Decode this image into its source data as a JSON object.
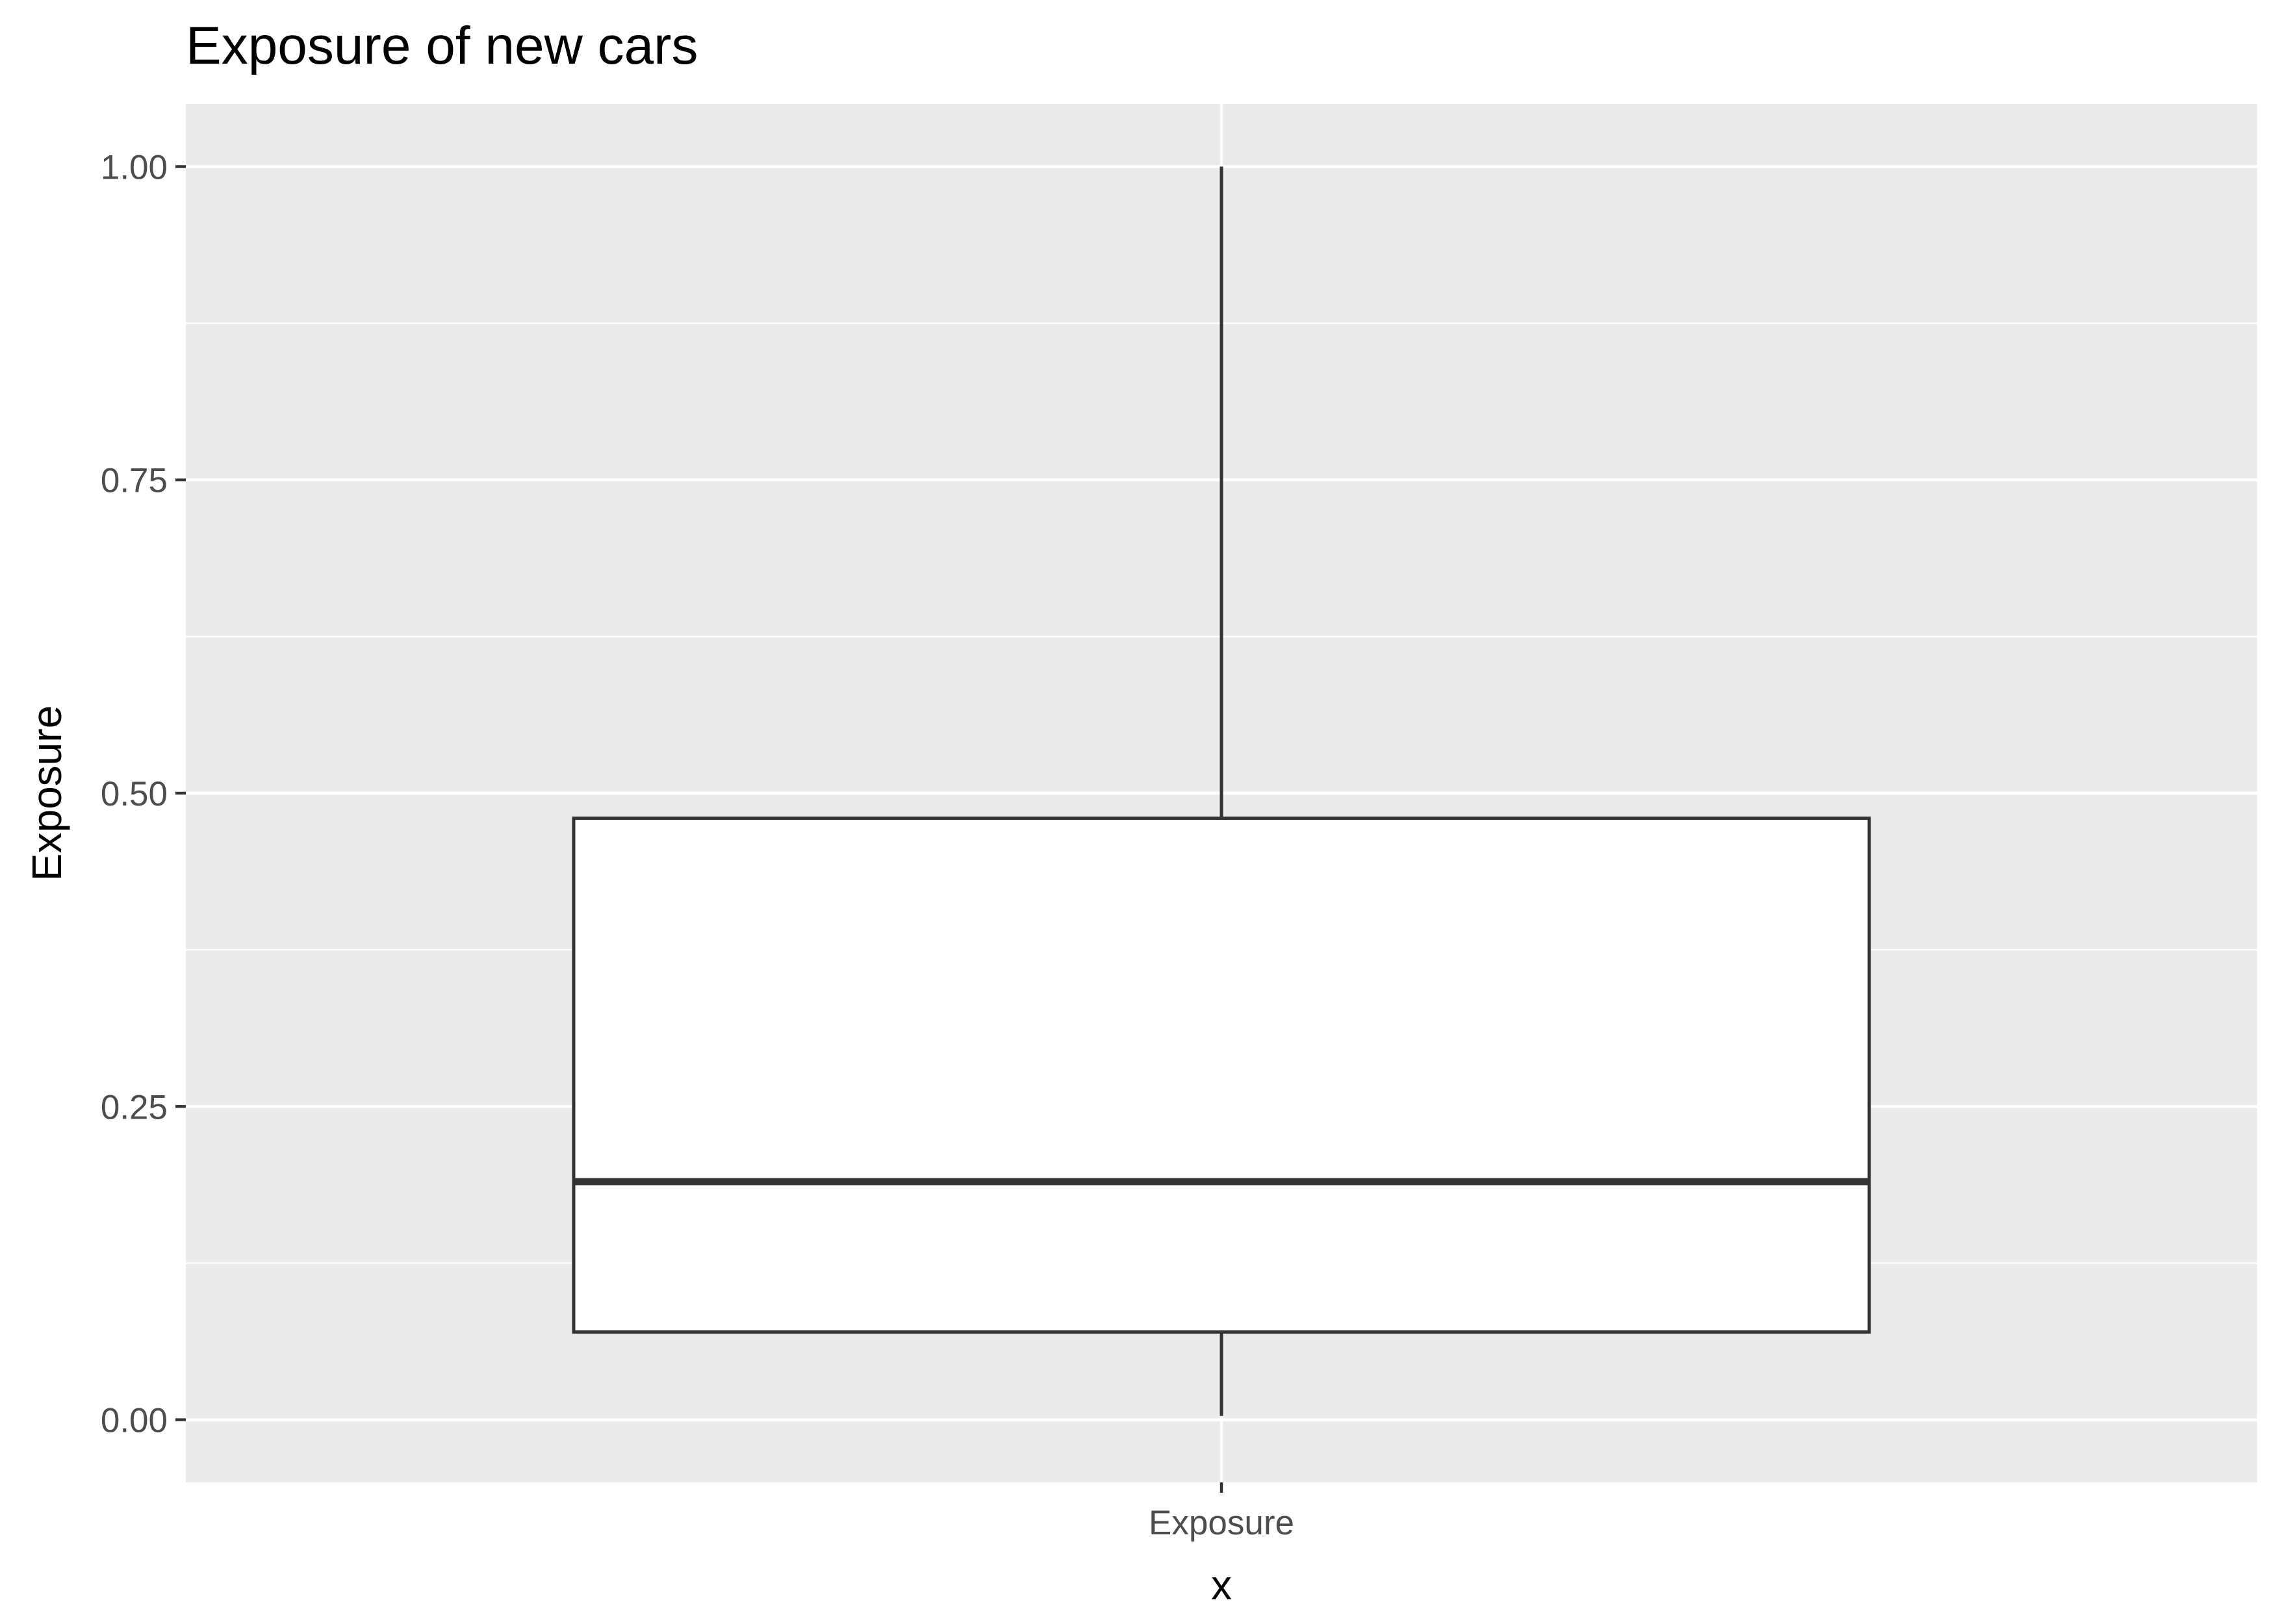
{
  "chart_data": {
    "type": "boxplot",
    "title": "Exposure of new cars",
    "xlabel": "x",
    "ylabel": "Exposure",
    "categories": [
      "Exposure"
    ],
    "boxes": [
      {
        "category": "Exposure",
        "min": 0.003,
        "q1": 0.07,
        "median": 0.19,
        "q3": 0.48,
        "max": 1.0
      }
    ],
    "ylim": [
      -0.05,
      1.05
    ],
    "yticks": [
      0.0,
      0.25,
      0.5,
      0.75,
      1.0
    ],
    "ytick_labels": [
      "0.00",
      "0.25",
      "0.50",
      "0.75",
      "1.00"
    ],
    "grid": true,
    "colors": {
      "panel_background": "#ebebeb",
      "grid": "#ffffff",
      "box_fill": "#ffffff",
      "box_stroke": "#333333",
      "tick": "#333333"
    }
  }
}
